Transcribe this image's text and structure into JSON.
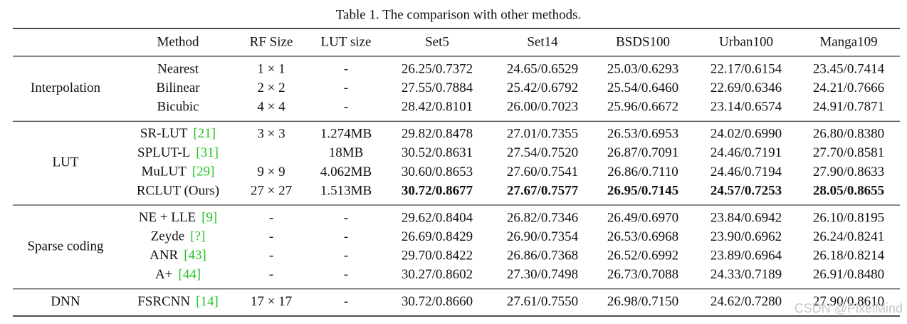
{
  "caption": "Table 1. The comparison with other methods.",
  "header": [
    "Method",
    "RF Size",
    "LUT size",
    "Set5",
    "Set14",
    "BSDS100",
    "Urban100",
    "Manga109"
  ],
  "groups": [
    {
      "name": "Interpolation",
      "rows": [
        {
          "method": "Nearest",
          "rf": "1 × 1",
          "lut": "-",
          "scores": [
            "26.25/0.7372",
            "24.65/0.6529",
            "25.03/0.6293",
            "22.17/0.6154",
            "23.45/0.7414"
          ]
        },
        {
          "method": "Bilinear",
          "rf": "2 × 2",
          "lut": "-",
          "scores": [
            "27.55/0.7884",
            "25.42/0.6792",
            "25.54/0.6460",
            "22.69/0.6346",
            "24.21/0.7666"
          ]
        },
        {
          "method": "Bicubic",
          "rf": "4 × 4",
          "lut": "-",
          "scores": [
            "28.42/0.8101",
            "26.00/0.7023",
            "25.96/0.6672",
            "23.14/0.6574",
            "24.91/0.7871"
          ]
        }
      ]
    },
    {
      "name": "LUT",
      "rows": [
        {
          "method": "SR-LUT",
          "cite": "[21]",
          "rf": "3 × 3",
          "lut": "1.274MB",
          "scores": [
            "29.82/0.8478",
            "27.01/0.7355",
            "26.53/0.6953",
            "24.02/0.6990",
            "26.80/0.8380"
          ]
        },
        {
          "method": "SPLUT-L",
          "cite": "[31]",
          "lut": "18MB",
          "scores": [
            "30.52/0.8631",
            "27.54/0.7520",
            "26.87/0.7091",
            "24.46/0.7191",
            "27.70/0.8581"
          ]
        },
        {
          "method": "MuLUT",
          "cite": "[29]",
          "rf": "9 × 9",
          "lut": "4.062MB",
          "scores": [
            "30.60/0.8653",
            "27.60/0.7541",
            "26.86/0.7110",
            "24.46/0.7194",
            "27.90/0.8633"
          ]
        },
        {
          "method": "RCLUT (Ours)",
          "rf": "27 × 27",
          "lut": "1.513MB",
          "bold": true,
          "scores": [
            "30.72/0.8677",
            "27.67/0.7577",
            "26.95/0.7145",
            "24.57/0.7253",
            "28.05/0.8655"
          ]
        }
      ]
    },
    {
      "name": "Sparse coding",
      "rows": [
        {
          "method": "NE + LLE",
          "cite": "[9]",
          "rf": "-",
          "lut": "-",
          "scores": [
            "29.62/0.8404",
            "26.82/0.7346",
            "26.49/0.6970",
            "23.84/0.6942",
            "26.10/0.8195"
          ]
        },
        {
          "method": "Zeyde",
          "cite": "[?]",
          "rf": "-",
          "lut": "-",
          "scores": [
            "26.69/0.8429",
            "26.90/0.7354",
            "26.53/0.6968",
            "23.90/0.6962",
            "26.24/0.8241"
          ]
        },
        {
          "method": "ANR",
          "cite": "[43]",
          "rf": "-",
          "lut": "-",
          "scores": [
            "29.70/0.8422",
            "26.86/0.7368",
            "26.52/0.6992",
            "23.89/0.6964",
            "26.18/0.8214"
          ]
        },
        {
          "method": "A+",
          "cite": "[44]",
          "rf": "-",
          "lut": "-",
          "scores": [
            "30.27/0.8602",
            "27.30/0.7498",
            "26.73/0.7088",
            "24.33/0.7189",
            "26.91/0.8480"
          ]
        }
      ]
    },
    {
      "name": "DNN",
      "rows": [
        {
          "method": "FSRCNN",
          "cite": "[14]",
          "rf": "17 × 17",
          "lut": "-",
          "scores": [
            "30.72/0.8660",
            "27.61/0.7550",
            "26.98/0.7150",
            "24.62/0.7280",
            "27.90/0.8610"
          ]
        }
      ]
    }
  ],
  "watermark": "CSDN @PixelMind"
}
